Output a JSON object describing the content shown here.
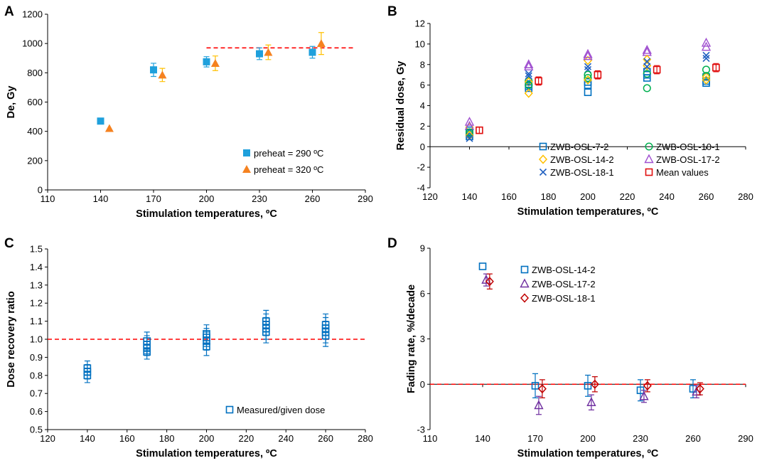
{
  "figure": {
    "colors": {
      "blue": "#0070C0",
      "orange": "#F58220",
      "lightblue": "#1FA0DC",
      "green": "#00B050",
      "gold": "#FFC000",
      "purple": "#7030A0",
      "purple_light": "#A050D0",
      "red": "#E01010",
      "dark_red": "#C00000",
      "bright_red": "#FF0000",
      "navy": "#1F5FC0",
      "axis": "#000000"
    }
  },
  "chart_data": [
    {
      "panel": "A",
      "type": "scatter",
      "xlabel": "Stimulation temperatures, ºC",
      "ylabel": "De, Gy",
      "xlim": [
        110,
        290
      ],
      "ylim": [
        0,
        1200
      ],
      "xticks": [
        110,
        140,
        170,
        200,
        230,
        260,
        290
      ],
      "yticks": [
        0,
        200,
        400,
        600,
        800,
        1000,
        1200
      ],
      "legend_position": "bottom-right",
      "reference_line": {
        "y": 970,
        "x_range": [
          200,
          283
        ],
        "style": "dashed",
        "color": "#FF0000"
      },
      "series": [
        {
          "name": "preheat = 290 ºC",
          "marker": "square",
          "color": "#1FA0DC",
          "x": [
            140,
            170,
            200,
            230,
            260
          ],
          "y": [
            470,
            820,
            875,
            930,
            940
          ],
          "err": [
            0,
            45,
            35,
            40,
            40
          ]
        },
        {
          "name": "preheat = 320 ºC",
          "marker": "triangle",
          "color": "#F58220",
          "errcolor": "#FFC000",
          "x": [
            145,
            175,
            205,
            235,
            265
          ],
          "y": [
            420,
            785,
            865,
            940,
            1000
          ],
          "err": [
            0,
            45,
            50,
            50,
            75
          ]
        }
      ]
    },
    {
      "panel": "B",
      "type": "scatter",
      "xlabel": "Stimulation temperatures, ºC",
      "ylabel": "Residual dose, Gy",
      "xlim": [
        120,
        280
      ],
      "ylim": [
        -4,
        12
      ],
      "xticks": [
        120,
        140,
        160,
        180,
        200,
        220,
        240,
        260,
        280
      ],
      "yticks": [
        -4,
        -2,
        0,
        2,
        4,
        6,
        8,
        10,
        12
      ],
      "legend_position": "bottom-right",
      "series": [
        {
          "name": "ZWB-OSL-7-2",
          "marker": "square-open",
          "color": "#0070C0",
          "x": [
            140,
            170,
            200,
            230,
            260
          ],
          "y": [
            1.3,
            5.7,
            5.3,
            6.7,
            6.2
          ]
        },
        {
          "name": "ZWB-OSL-10-1",
          "marker": "circle-open",
          "color": "#00B050",
          "x": [
            140,
            170,
            200,
            230,
            260
          ],
          "y": [
            1.4,
            6.0,
            7.0,
            5.7,
            7.5
          ]
        },
        {
          "name": "ZWB-OSL-14-2",
          "marker": "diamond-open",
          "color": "#FFC000",
          "x": [
            140,
            170,
            200,
            230,
            260
          ],
          "y": [
            1.1,
            5.2,
            6.5,
            8.5,
            6.5
          ]
        },
        {
          "name": "ZWB-OSL-17-2",
          "marker": "triangle-open",
          "color": "#A050D0",
          "x": [
            140,
            170,
            200,
            230,
            260
          ],
          "y": [
            2.4,
            8.0,
            9.0,
            9.4,
            10.1
          ]
        },
        {
          "name": "ZWB-OSL-18-1",
          "marker": "x",
          "color": "#1F5FC0",
          "x": [
            140,
            170,
            200,
            230,
            260
          ],
          "y": [
            0.8,
            7.1,
            7.8,
            8.3,
            8.9
          ]
        },
        {
          "name": "Mean values",
          "marker": "square-open",
          "color": "#E01010",
          "x": [
            145,
            175,
            205,
            235,
            265
          ],
          "y": [
            1.6,
            6.4,
            7.0,
            7.5,
            7.7
          ],
          "err": [
            0.3,
            0.4,
            0.4,
            0.4,
            0.4
          ]
        }
      ],
      "extra_points": [
        {
          "color": "#0070C0",
          "marker": "square-open",
          "x": [
            140,
            140,
            170,
            170,
            200,
            200,
            230,
            230,
            260,
            260
          ],
          "y": [
            1.0,
            1.6,
            5.9,
            6.1,
            6.0,
            6.3,
            7.0,
            7.3,
            6.4,
            6.8
          ]
        },
        {
          "color": "#00B050",
          "marker": "circle-open",
          "x": [
            140,
            170,
            200,
            230,
            260
          ],
          "y": [
            1.2,
            6.4,
            6.7,
            7.1,
            6.9
          ]
        },
        {
          "color": "#FFC000",
          "marker": "diamond-open",
          "x": [
            140,
            170,
            200,
            230,
            260
          ],
          "y": [
            1.9,
            6.3,
            8.4,
            7.9,
            6.8
          ]
        },
        {
          "color": "#A050D0",
          "marker": "triangle-open",
          "x": [
            140,
            170,
            200,
            230,
            260
          ],
          "y": [
            2.0,
            7.8,
            8.8,
            9.2,
            9.7
          ]
        },
        {
          "color": "#1F5FC0",
          "marker": "x",
          "x": [
            140,
            170,
            200,
            230,
            260
          ],
          "y": [
            1.1,
            6.9,
            7.5,
            7.8,
            8.6
          ]
        }
      ]
    },
    {
      "panel": "C",
      "type": "scatter",
      "xlabel": "Stimulation temperatures, ºC",
      "ylabel": "Dose recovery ratio",
      "xlim": [
        120,
        280
      ],
      "ylim": [
        0.5,
        1.5
      ],
      "xticks": [
        120,
        140,
        160,
        180,
        200,
        220,
        240,
        260,
        280
      ],
      "yticks": [
        0.5,
        0.6,
        0.7,
        0.8,
        0.9,
        1.0,
        1.1,
        1.2,
        1.3,
        1.4,
        1.5
      ],
      "legend_position": "bottom-right",
      "reference_line": {
        "y": 1.0,
        "style": "dashed",
        "color": "#FF0000"
      },
      "series": [
        {
          "name": "Measured/given dose",
          "marker": "square-open",
          "color": "#0070C0",
          "x": [
            140,
            140,
            140,
            170,
            170,
            170,
            170,
            200,
            200,
            200,
            200,
            230,
            230,
            230,
            230,
            260,
            260,
            260,
            260
          ],
          "y": [
            0.8,
            0.82,
            0.84,
            0.93,
            0.95,
            0.97,
            0.99,
            0.96,
            0.99,
            1.01,
            1.03,
            1.04,
            1.06,
            1.08,
            1.1,
            1.02,
            1.04,
            1.06,
            1.08
          ],
          "err": [
            0.04,
            0.04,
            0.04,
            0.04,
            0.04,
            0.05,
            0.05,
            0.05,
            0.05,
            0.05,
            0.05,
            0.06,
            0.06,
            0.06,
            0.06,
            0.06,
            0.06,
            0.06,
            0.06
          ]
        }
      ]
    },
    {
      "panel": "D",
      "type": "scatter",
      "xlabel": "Stimulation temperatures, ºC",
      "ylabel": "Fading rate, %/decade",
      "xlim": [
        110,
        290
      ],
      "ylim": [
        -3,
        9
      ],
      "xticks": [
        110,
        140,
        170,
        200,
        230,
        260,
        290
      ],
      "yticks": [
        -3,
        0,
        3,
        6,
        9
      ],
      "legend_position": "top-right",
      "reference_line": {
        "y": 0,
        "style": "dashed",
        "color": "#FF0000"
      },
      "series": [
        {
          "name": "ZWB-OSL-14-2",
          "marker": "square-open",
          "color": "#0070C0",
          "x": [
            140,
            170,
            200,
            230,
            260
          ],
          "y": [
            7.8,
            -0.1,
            -0.1,
            -0.4,
            -0.3
          ],
          "err": [
            0,
            0.8,
            0.7,
            0.7,
            0.6
          ]
        },
        {
          "name": "ZWB-OSL-17-2",
          "marker": "triangle-open",
          "color": "#7030A0",
          "x": [
            142,
            172,
            202,
            232,
            262
          ],
          "y": [
            6.9,
            -1.4,
            -1.2,
            -0.8,
            -0.5
          ],
          "err": [
            0.4,
            0.6,
            0.5,
            0.4,
            0.4
          ]
        },
        {
          "name": "ZWB-OSL-18-1",
          "marker": "diamond-open",
          "color": "#C00000",
          "x": [
            144,
            174,
            204,
            234,
            264
          ],
          "y": [
            6.8,
            -0.3,
            0.0,
            -0.1,
            -0.3
          ],
          "err": [
            0.5,
            0.6,
            0.5,
            0.4,
            0.4
          ]
        }
      ]
    }
  ]
}
